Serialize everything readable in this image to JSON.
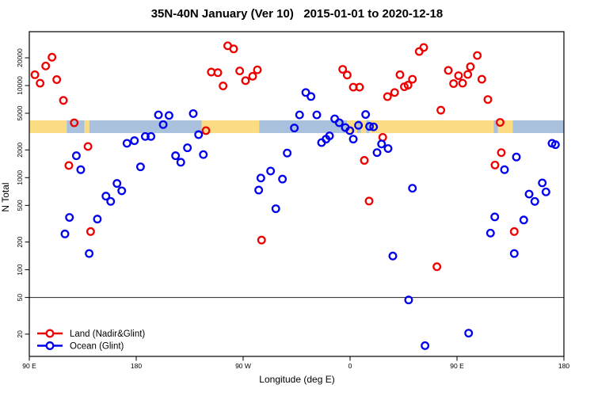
{
  "title": "35N-40N January (Ver 10)   2015-01-01 to 2020-12-18",
  "chart_data": {
    "type": "scatter",
    "title": "35N-40N January (Ver 10)   2015-01-01 to 2020-12-18",
    "xlabel": "Longitude (deg E)",
    "ylabel": "N Total",
    "x_axis": {
      "note": "longitude axis wraps eastward: 90E to 180, 90W, 0, 90E, 180",
      "range": [
        90,
        540
      ],
      "ticks": [
        {
          "pos": 90,
          "label": "90 E"
        },
        {
          "pos": 180,
          "label": "180"
        },
        {
          "pos": 270,
          "label": "90 W"
        },
        {
          "pos": 360,
          "label": "0"
        },
        {
          "pos": 450,
          "label": "90 E"
        },
        {
          "pos": 540,
          "label": "180"
        }
      ]
    },
    "y_axis": {
      "scale": "log",
      "range": [
        13,
        30000
      ],
      "ticks": [
        20000,
        10000,
        5000,
        2000,
        1000,
        500,
        200,
        100,
        50,
        20
      ]
    },
    "ref_line_y": 50,
    "band": {
      "description": "land/ocean strip along longitude at N ~3000-4200",
      "value_range": [
        3050,
        4190
      ],
      "land_color": "#fbdc82",
      "ocean_color": "#aac1de",
      "segments": [
        [
          90,
          121.5,
          "land"
        ],
        [
          121.5,
          136.5,
          "ocean"
        ],
        [
          136.5,
          140.5,
          "land"
        ],
        [
          140.5,
          235,
          "ocean"
        ],
        [
          235,
          283.5,
          "land"
        ],
        [
          283.5,
          357.5,
          "ocean"
        ],
        [
          357.5,
          366,
          "land"
        ],
        [
          366,
          369,
          "ocean"
        ],
        [
          369,
          373.5,
          "land"
        ],
        [
          373.5,
          376.5,
          "ocean"
        ],
        [
          376.5,
          481,
          "land"
        ],
        [
          481,
          484.5,
          "ocean"
        ],
        [
          484.5,
          497,
          "land"
        ],
        [
          497,
          540,
          "ocean"
        ]
      ]
    },
    "legend_position": "bottom-left",
    "series": [
      {
        "name": "Land (Nadir&Glint)",
        "color": "#ee0000",
        "points": [
          [
            109.1,
            20300
          ],
          [
            103.8,
            16300
          ],
          [
            94.7,
            13100
          ],
          [
            99.1,
            10600
          ],
          [
            113.1,
            11600
          ],
          [
            118.7,
            6900
          ],
          [
            127.8,
            3940
          ],
          [
            139.4,
            2180
          ],
          [
            123.3,
            1355
          ],
          [
            141.6,
            260
          ],
          [
            257,
            27000
          ],
          [
            262,
            25000
          ],
          [
            243.2,
            14000
          ],
          [
            248.7,
            13800
          ],
          [
            267.1,
            14400
          ],
          [
            278,
            12600
          ],
          [
            282,
            14800
          ],
          [
            272,
            11300
          ],
          [
            253.1,
            9900
          ],
          [
            238.7,
            3240
          ],
          [
            285.5,
            210
          ],
          [
            353.8,
            15000
          ],
          [
            357.6,
            13000
          ],
          [
            362.7,
            9600
          ],
          [
            368,
            9600
          ],
          [
            391.5,
            7580
          ],
          [
            397.5,
            8400
          ],
          [
            402,
            13100
          ],
          [
            405.7,
            9700
          ],
          [
            408.8,
            10100
          ],
          [
            412.5,
            11700
          ],
          [
            418.2,
            23400
          ],
          [
            422,
            25900
          ],
          [
            387.5,
            2740
          ],
          [
            372,
            1540
          ],
          [
            376,
            557
          ],
          [
            433.1,
            108
          ],
          [
            436.4,
            5400
          ],
          [
            442.7,
            14600
          ],
          [
            451.3,
            12800
          ],
          [
            447.1,
            10500
          ],
          [
            454.7,
            10600
          ],
          [
            459.1,
            13200
          ],
          [
            461.3,
            16000
          ],
          [
            467.1,
            21200
          ],
          [
            470.9,
            11700
          ],
          [
            476,
            7050
          ],
          [
            486.3,
            3980
          ],
          [
            487.3,
            1870
          ],
          [
            482,
            1370
          ],
          [
            498.2,
            260
          ]
        ]
      },
      {
        "name": "Ocean (Glint)",
        "color": "#0000ee",
        "points": [
          [
            129.6,
            1730
          ],
          [
            133.3,
            1220
          ],
          [
            172.2,
            2360
          ],
          [
            178.5,
            2520
          ],
          [
            163.8,
            865
          ],
          [
            167.8,
            720
          ],
          [
            154.5,
            630
          ],
          [
            158.5,
            552
          ],
          [
            123.8,
            370
          ],
          [
            147.3,
            355
          ],
          [
            120,
            245
          ],
          [
            140.4,
            150
          ],
          [
            183.6,
            1310
          ],
          [
            187.6,
            2800
          ],
          [
            192.4,
            2800
          ],
          [
            198.7,
            4800
          ],
          [
            207.6,
            4730
          ],
          [
            202.7,
            3770
          ],
          [
            228,
            4960
          ],
          [
            232.5,
            2930
          ],
          [
            223.1,
            2110
          ],
          [
            213.1,
            1730
          ],
          [
            217.5,
            1470
          ],
          [
            236.5,
            1780
          ],
          [
            284.9,
            990
          ],
          [
            283.1,
            733
          ],
          [
            297.5,
            460
          ],
          [
            303.1,
            965
          ],
          [
            307.1,
            1850
          ],
          [
            293.1,
            1180
          ],
          [
            317.5,
            4800
          ],
          [
            322.7,
            8400
          ],
          [
            327.1,
            7600
          ],
          [
            313.1,
            3460
          ],
          [
            332,
            4800
          ],
          [
            342.7,
            2840
          ],
          [
            339.8,
            2620
          ],
          [
            336,
            2400
          ],
          [
            347.1,
            4350
          ],
          [
            350.9,
            3950
          ],
          [
            356,
            3500
          ],
          [
            359.8,
            3240
          ],
          [
            362.7,
            2620
          ],
          [
            373.1,
            4850
          ],
          [
            367.1,
            3700
          ],
          [
            376.4,
            3600
          ],
          [
            379.8,
            3560
          ],
          [
            386.5,
            2320
          ],
          [
            392,
            2070
          ],
          [
            382.7,
            1870
          ],
          [
            396,
            141
          ],
          [
            409.3,
            47
          ],
          [
            412.5,
            767
          ],
          [
            423.1,
            15
          ],
          [
            459.8,
            20.5
          ],
          [
            481.8,
            375
          ],
          [
            478.2,
            250
          ],
          [
            498.2,
            150
          ],
          [
            500,
            1675
          ],
          [
            490,
            1220
          ],
          [
            506.2,
            347
          ],
          [
            510.7,
            663
          ],
          [
            515.5,
            552
          ],
          [
            521.8,
            877
          ],
          [
            524.9,
            700
          ],
          [
            530,
            2360
          ],
          [
            532.9,
            2280
          ]
        ]
      }
    ]
  }
}
